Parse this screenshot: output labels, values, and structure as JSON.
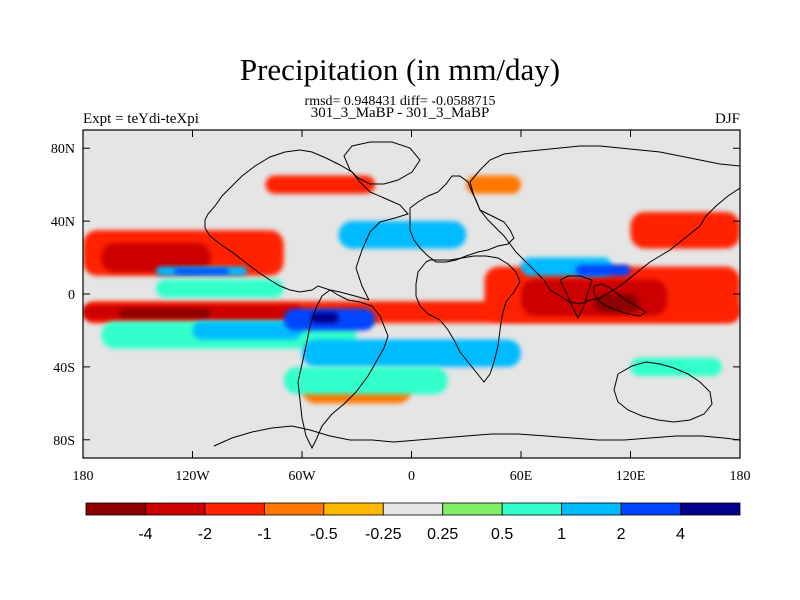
{
  "title": "Precipitation (in mm/day)",
  "stats": "rmsd= 0.948431 diff= -0.0588715",
  "left_label": "Expt = teYdi-teXpi",
  "center_label": "301_3_MaBP - 301_3_MaBP",
  "right_label": "DJF",
  "map": {
    "lon_range": [
      -180,
      180
    ],
    "lat_range": [
      -90,
      90
    ],
    "x_ticks": [
      {
        "lon": -180,
        "label": "180"
      },
      {
        "lon": -120,
        "label": "120W"
      },
      {
        "lon": -60,
        "label": "60W"
      },
      {
        "lon": 0,
        "label": "0"
      },
      {
        "lon": 60,
        "label": "60E"
      },
      {
        "lon": 120,
        "label": "120E"
      },
      {
        "lon": 180,
        "label": "180"
      }
    ],
    "y_ticks": [
      {
        "lat": 80,
        "label": "80N"
      },
      {
        "lat": 40,
        "label": "40N"
      },
      {
        "lat": 0,
        "label": "0"
      },
      {
        "lat": -40,
        "label": "40S"
      },
      {
        "lat": -80,
        "label": "80S"
      }
    ],
    "background_color": "#e5e5e5"
  },
  "colorbar": {
    "colors": [
      "#8b0000",
      "#cc0000",
      "#ff2200",
      "#ff7700",
      "#ffb800",
      "#e5e5e5",
      "#80ee66",
      "#33ffcc",
      "#00bbff",
      "#0044ff",
      "#00008b"
    ],
    "labels": [
      "-4",
      "-2",
      "-1",
      "-0.5",
      "-0.25",
      "0.25",
      "0.5",
      "1",
      "2",
      "4"
    ]
  },
  "chart_data": {
    "type": "heatmap",
    "levels": [
      -4,
      -2,
      -1,
      -0.5,
      -0.25,
      0.25,
      0.5,
      1,
      2,
      4
    ],
    "regions": [
      {
        "level": -1,
        "lon": [
          -180,
          180
        ],
        "lat": [
          -16,
          -4
        ]
      },
      {
        "level": -2,
        "lon": [
          -180,
          -60
        ],
        "lat": [
          -14,
          -6
        ]
      },
      {
        "level": -4,
        "lon": [
          -160,
          -110
        ],
        "lat": [
          -13,
          -8
        ]
      },
      {
        "level": -1,
        "lon": [
          -180,
          -70
        ],
        "lat": [
          10,
          35
        ]
      },
      {
        "level": -2,
        "lon": [
          -170,
          -110
        ],
        "lat": [
          12,
          28
        ]
      },
      {
        "level": -1,
        "lon": [
          40,
          180
        ],
        "lat": [
          -15,
          15
        ]
      },
      {
        "level": -2,
        "lon": [
          60,
          140
        ],
        "lat": [
          -12,
          8
        ]
      },
      {
        "level": -4,
        "lon": [
          100,
          125
        ],
        "lat": [
          -10,
          0
        ]
      },
      {
        "level": -1,
        "lon": [
          120,
          180
        ],
        "lat": [
          25,
          45
        ]
      },
      {
        "level": -1,
        "lon": [
          -80,
          -20
        ],
        "lat": [
          55,
          65
        ]
      },
      {
        "level": -0.5,
        "lon": [
          30,
          60
        ],
        "lat": [
          55,
          65
        ]
      },
      {
        "level": -0.5,
        "lon": [
          -60,
          0
        ],
        "lat": [
          -60,
          -45
        ]
      },
      {
        "level": 0.5,
        "lon": [
          -170,
          -30
        ],
        "lat": [
          -30,
          -15
        ]
      },
      {
        "level": 1,
        "lon": [
          -120,
          -60
        ],
        "lat": [
          -25,
          -15
        ]
      },
      {
        "level": 0.5,
        "lon": [
          -140,
          -70
        ],
        "lat": [
          -2,
          8
        ]
      },
      {
        "level": 1,
        "lon": [
          -40,
          30
        ],
        "lat": [
          25,
          40
        ]
      },
      {
        "level": 2,
        "lon": [
          -70,
          -20
        ],
        "lat": [
          -20,
          -8
        ]
      },
      {
        "level": 4,
        "lon": [
          -55,
          -40
        ],
        "lat": [
          -16,
          -10
        ]
      },
      {
        "level": 1,
        "lon": [
          -60,
          60
        ],
        "lat": [
          -40,
          -25
        ]
      },
      {
        "level": 1,
        "lon": [
          60,
          110
        ],
        "lat": [
          10,
          20
        ]
      },
      {
        "level": 2,
        "lon": [
          90,
          120
        ],
        "lat": [
          10,
          16
        ]
      },
      {
        "level": 1,
        "lon": [
          -140,
          -90
        ],
        "lat": [
          10,
          15
        ]
      },
      {
        "level": 2,
        "lon": [
          -130,
          -100
        ],
        "lat": [
          11,
          14
        ]
      },
      {
        "level": 0.5,
        "lon": [
          -70,
          20
        ],
        "lat": [
          -55,
          -40
        ]
      },
      {
        "level": 0.5,
        "lon": [
          120,
          170
        ],
        "lat": [
          -45,
          -35
        ]
      }
    ],
    "xlabel": "",
    "ylabel": ""
  }
}
